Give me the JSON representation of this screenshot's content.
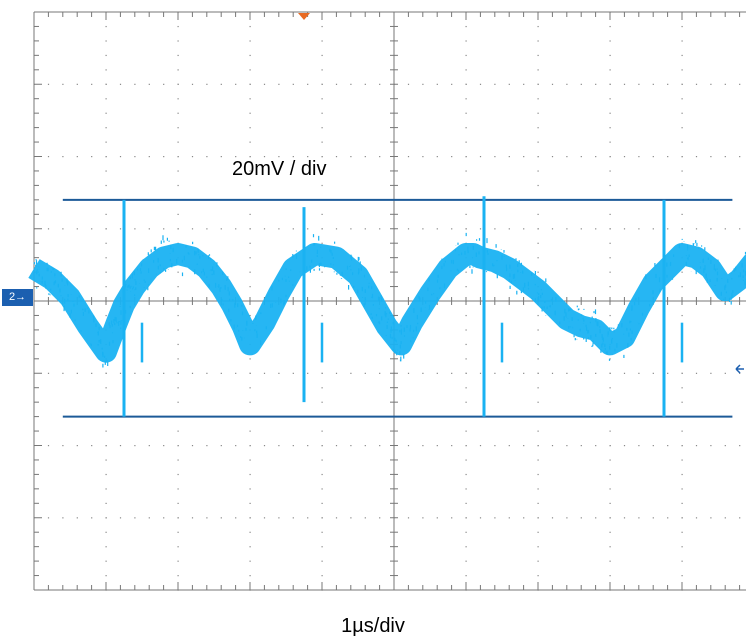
{
  "chart_data": {
    "type": "line",
    "xlabel": "1µs/div",
    "ylabel": "20mV / div",
    "x_unit": "div",
    "y_unit": "div",
    "xlim": [
      0,
      10
    ],
    "ylim": [
      -4,
      4
    ],
    "grid": true,
    "channel_marker": "2→",
    "series": [
      {
        "color": "#1ab2f2",
        "description_period_div": 2.5,
        "x": [
          0.0,
          0.25,
          0.5,
          0.75,
          1.0,
          1.15,
          1.25,
          1.4,
          1.6,
          1.8,
          2.0,
          2.2,
          2.4,
          2.6,
          2.75,
          2.9,
          3.0,
          3.2,
          3.4,
          3.6,
          3.9,
          4.2,
          4.5,
          4.7,
          4.9,
          5.1,
          5.25,
          5.5,
          5.75,
          6.0,
          6.1,
          6.2,
          6.4,
          6.6,
          6.8,
          7.0,
          7.2,
          7.4,
          7.6,
          7.8,
          8.0,
          8.2,
          8.4,
          8.6,
          8.9,
          9.0,
          9.2,
          9.4,
          9.6,
          9.8,
          10.0
        ],
        "y": [
          0.45,
          0.3,
          0.05,
          -0.35,
          -0.7,
          -0.3,
          -0.05,
          0.2,
          0.45,
          0.6,
          0.65,
          0.6,
          0.45,
          0.2,
          -0.05,
          -0.35,
          -0.6,
          -0.3,
          0.1,
          0.45,
          0.65,
          0.6,
          0.35,
          0.0,
          -0.35,
          -0.6,
          -0.3,
          0.1,
          0.45,
          0.65,
          0.65,
          0.6,
          0.55,
          0.45,
          0.3,
          0.15,
          -0.05,
          -0.25,
          -0.35,
          -0.4,
          -0.6,
          -0.5,
          -0.1,
          0.25,
          0.55,
          0.65,
          0.6,
          0.45,
          0.15,
          0.3,
          0.55
        ]
      }
    ],
    "spikes": [
      {
        "x": 1.25,
        "y_top": 1.4,
        "y_bottom": -1.6
      },
      {
        "x": 3.75,
        "y_top": 1.3,
        "y_bottom": -1.4
      },
      {
        "x": 6.25,
        "y_top": 1.45,
        "y_bottom": -1.6
      },
      {
        "x": 8.75,
        "y_top": 1.4,
        "y_bottom": -1.6
      }
    ],
    "cursors": [
      {
        "y": 1.4,
        "x_start": 0.4,
        "x_end": 9.7
      },
      {
        "y": -1.6,
        "x_start": 0.4,
        "x_end": 9.7
      }
    ]
  }
}
